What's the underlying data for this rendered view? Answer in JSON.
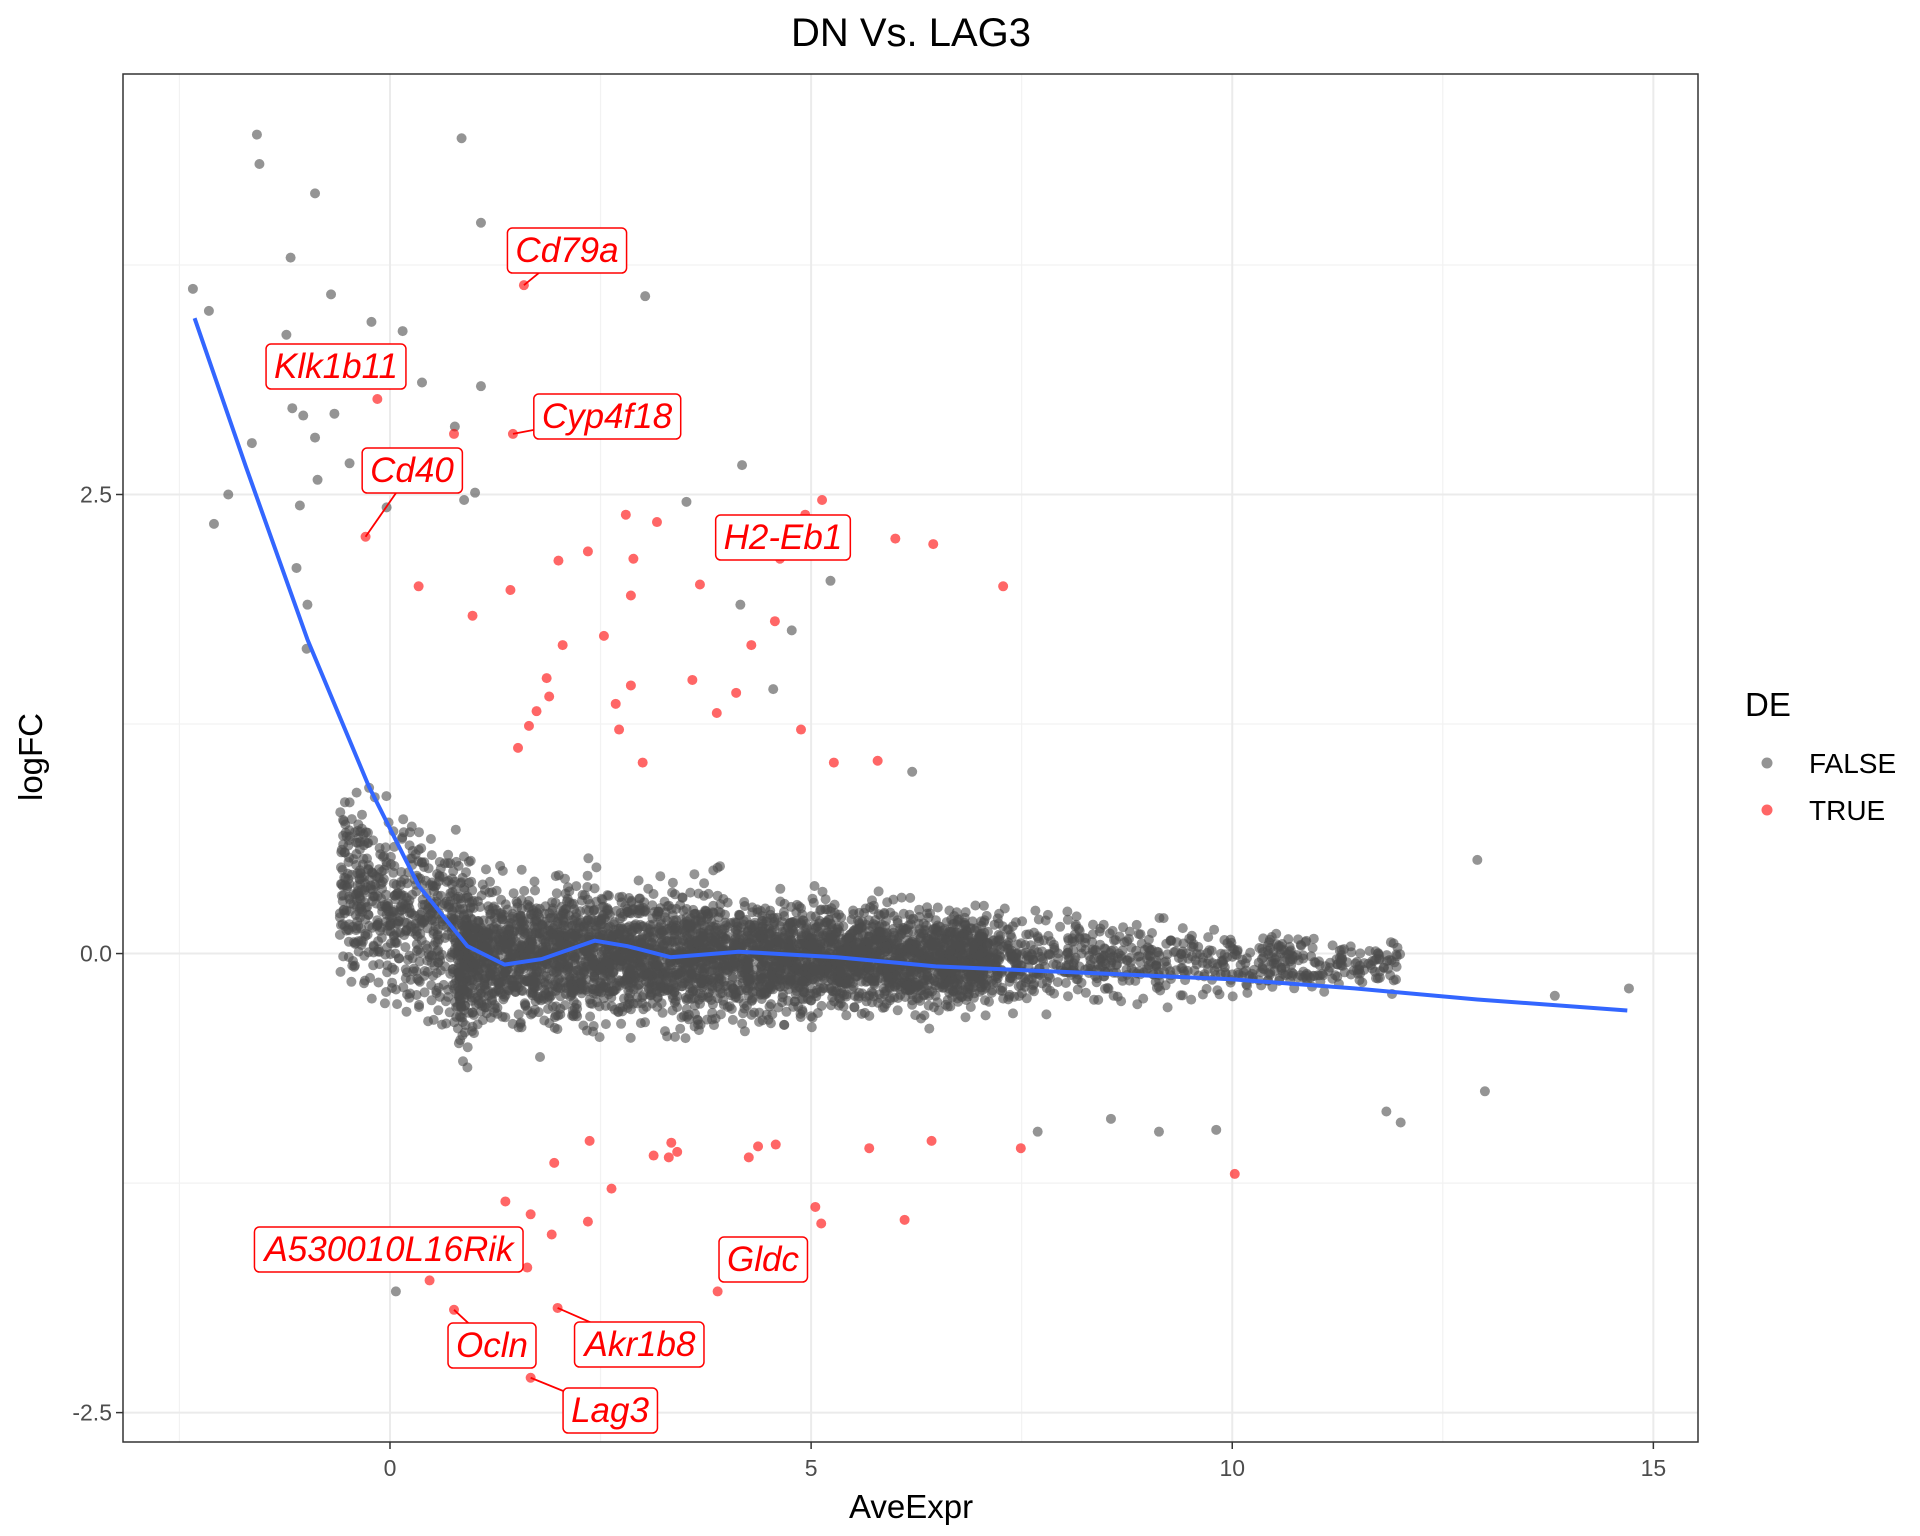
{
  "chart_data": {
    "type": "scatter",
    "title": "DN Vs. LAG3",
    "xlabel": "AveExpr",
    "ylabel": "logFC",
    "xlim": [
      -3.17,
      15.53
    ],
    "ylim": [
      -2.66,
      4.79
    ],
    "x_ticks": [
      "0",
      "5",
      "10",
      "15"
    ],
    "y_ticks": [
      "-2.5",
      "0.0",
      "2.5"
    ],
    "grid": true,
    "legend": {
      "title": "DE",
      "placement": "right",
      "entries": [
        {
          "label": "FALSE",
          "color": "#4d4d4d"
        },
        {
          "label": "TRUE",
          "color": "#ff0000"
        }
      ]
    },
    "colors": {
      "FALSE": "#4d4d4d",
      "TRUE": "#ff0000",
      "smooth": "#3366ff"
    },
    "labeled_genes": [
      {
        "gene": "Cd79a",
        "x": 1.59,
        "y": 3.64
      },
      {
        "gene": "Klk1b11",
        "x": -0.15,
        "y": 3.02
      },
      {
        "gene": "Cyp4f18",
        "x": 1.46,
        "y": 2.83
      },
      {
        "gene": "Cd40",
        "x": -0.29,
        "y": 2.27
      },
      {
        "gene": "H2-Eb1",
        "x": 4.63,
        "y": 2.15
      },
      {
        "gene": "A530010L16Rik",
        "x": 0.47,
        "y": -1.78
      },
      {
        "gene": "Gldc",
        "x": 3.89,
        "y": -1.84
      },
      {
        "gene": "Ocln",
        "x": 0.76,
        "y": -1.94
      },
      {
        "gene": "Akr1b8",
        "x": 1.99,
        "y": -1.93
      },
      {
        "gene": "Lag3",
        "x": 1.67,
        "y": -2.31
      }
    ],
    "de_true_points": [
      [
        0.76,
        2.83
      ],
      [
        0.34,
        2.0
      ],
      [
        0.98,
        1.84
      ],
      [
        1.43,
        1.98
      ],
      [
        2.0,
        2.14
      ],
      [
        2.35,
        2.19
      ],
      [
        2.8,
        2.39
      ],
      [
        3.17,
        2.35
      ],
      [
        2.89,
        2.15
      ],
      [
        2.86,
        1.95
      ],
      [
        3.68,
        2.01
      ],
      [
        5.13,
        2.47
      ],
      [
        4.93,
        2.39
      ],
      [
        6.0,
        2.26
      ],
      [
        6.45,
        2.23
      ],
      [
        7.28,
        2.0
      ],
      [
        4.57,
        1.81
      ],
      [
        4.29,
        1.68
      ],
      [
        2.05,
        1.68
      ],
      [
        2.54,
        1.73
      ],
      [
        1.86,
        1.5
      ],
      [
        1.89,
        1.4
      ],
      [
        1.74,
        1.32
      ],
      [
        1.65,
        1.24
      ],
      [
        1.52,
        1.12
      ],
      [
        2.86,
        1.46
      ],
      [
        2.68,
        1.36
      ],
      [
        2.72,
        1.22
      ],
      [
        3.59,
        1.49
      ],
      [
        4.11,
        1.42
      ],
      [
        3.88,
        1.31
      ],
      [
        4.88,
        1.22
      ],
      [
        5.27,
        1.04
      ],
      [
        5.79,
        1.05
      ],
      [
        3.0,
        1.04
      ],
      [
        1.63,
        -1.71
      ],
      [
        1.92,
        -1.53
      ],
      [
        1.67,
        -1.42
      ],
      [
        1.37,
        -1.35
      ],
      [
        2.35,
        -1.46
      ],
      [
        2.63,
        -1.28
      ],
      [
        1.95,
        -1.14
      ],
      [
        2.37,
        -1.02
      ],
      [
        3.13,
        -1.1
      ],
      [
        3.31,
        -1.11
      ],
      [
        3.41,
        -1.08
      ],
      [
        3.34,
        -1.03
      ],
      [
        4.37,
        -1.05
      ],
      [
        4.26,
        -1.11
      ],
      [
        4.58,
        -1.04
      ],
      [
        5.05,
        -1.38
      ],
      [
        5.12,
        -1.47
      ],
      [
        5.69,
        -1.06
      ],
      [
        6.11,
        -1.45
      ],
      [
        6.43,
        -1.02
      ],
      [
        7.49,
        -1.06
      ],
      [
        10.03,
        -1.2
      ]
    ],
    "de_false_outliers": [
      [
        -1.58,
        4.46
      ],
      [
        -1.55,
        4.3
      ],
      [
        0.85,
        4.44
      ],
      [
        -0.89,
        4.14
      ],
      [
        1.08,
        3.98
      ],
      [
        -1.18,
        3.79
      ],
      [
        -2.34,
        3.62
      ],
      [
        -2.15,
        3.5
      ],
      [
        -0.7,
        3.59
      ],
      [
        3.03,
        3.58
      ],
      [
        -0.22,
        3.44
      ],
      [
        0.15,
        3.39
      ],
      [
        -1.23,
        3.37
      ],
      [
        1.08,
        3.09
      ],
      [
        0.38,
        3.11
      ],
      [
        -1.16,
        2.97
      ],
      [
        -1.03,
        2.93
      ],
      [
        -0.66,
        2.94
      ],
      [
        -1.64,
        2.78
      ],
      [
        -0.89,
        2.81
      ],
      [
        0.77,
        2.87
      ],
      [
        -0.48,
        2.67
      ],
      [
        -0.86,
        2.58
      ],
      [
        -1.92,
        2.5
      ],
      [
        1.01,
        2.51
      ],
      [
        4.18,
        2.66
      ],
      [
        3.52,
        2.46
      ],
      [
        -2.09,
        2.34
      ],
      [
        -1.07,
        2.44
      ],
      [
        -0.04,
        2.43
      ],
      [
        0.88,
        2.47
      ],
      [
        -1.11,
        2.1
      ],
      [
        -0.98,
        1.9
      ],
      [
        -0.99,
        1.66
      ],
      [
        5.23,
        2.03
      ],
      [
        4.16,
        1.9
      ],
      [
        4.77,
        1.76
      ],
      [
        4.55,
        1.44
      ],
      [
        6.2,
        0.99
      ],
      [
        12.91,
        0.51
      ],
      [
        13.0,
        -0.75
      ],
      [
        14.71,
        -0.19
      ],
      [
        13.83,
        -0.23
      ],
      [
        12.0,
        -0.92
      ],
      [
        11.83,
        -0.86
      ],
      [
        0.07,
        -1.84
      ],
      [
        9.81,
        -0.96
      ],
      [
        9.13,
        -0.97
      ],
      [
        8.56,
        -0.9
      ],
      [
        7.69,
        -0.97
      ]
    ],
    "smooth_line": [
      [
        -2.32,
        3.46
      ],
      [
        -1.71,
        2.65
      ],
      [
        -0.98,
        1.71
      ],
      [
        -0.25,
        0.91
      ],
      [
        0.34,
        0.37
      ],
      [
        0.92,
        0.04
      ],
      [
        1.36,
        -0.06
      ],
      [
        1.8,
        -0.03
      ],
      [
        2.43,
        0.07
      ],
      [
        2.82,
        0.04
      ],
      [
        3.33,
        -0.02
      ],
      [
        4.14,
        0.01
      ],
      [
        5.31,
        -0.02
      ],
      [
        6.48,
        -0.07
      ],
      [
        8.52,
        -0.11
      ],
      [
        9.99,
        -0.14
      ],
      [
        11.45,
        -0.19
      ],
      [
        12.91,
        -0.25
      ],
      [
        14.69,
        -0.31
      ]
    ]
  }
}
